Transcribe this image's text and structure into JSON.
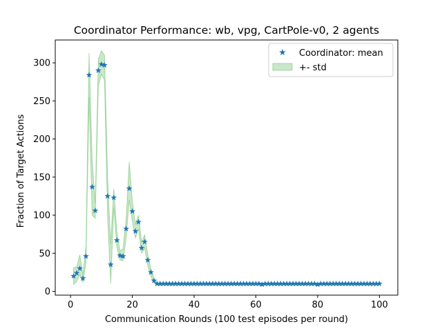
{
  "chart_data": {
    "type": "scatter",
    "title": "Coordinator Performance: wb, vpg, CartPole-v0, 2 agents",
    "xlabel": "Communication Rounds (100 test episodes per round)",
    "ylabel": "Fraction of Target Actions",
    "xlim": [
      -4.95,
      105.95
    ],
    "ylim": [
      -5,
      330
    ],
    "xticks": [
      0,
      20,
      40,
      60,
      80,
      100
    ],
    "yticks": [
      0,
      50,
      100,
      150,
      200,
      250,
      300
    ],
    "grid": false,
    "legend": "top-right",
    "series": [
      {
        "name": "Coordinator: mean",
        "marker": "star",
        "color": "#1f77b4",
        "x": [
          1,
          2,
          3,
          4,
          5,
          6,
          7,
          8,
          9,
          10,
          11,
          12,
          13,
          14,
          15,
          16,
          17,
          18,
          19,
          20,
          21,
          22,
          23,
          24,
          25,
          26,
          27,
          28,
          29,
          30,
          31,
          32,
          33,
          34,
          35,
          36,
          37,
          38,
          39,
          40,
          41,
          42,
          43,
          44,
          45,
          46,
          47,
          48,
          49,
          50,
          51,
          52,
          53,
          54,
          55,
          56,
          57,
          58,
          59,
          60,
          61,
          62,
          63,
          64,
          65,
          66,
          67,
          68,
          69,
          70,
          71,
          72,
          73,
          74,
          75,
          76,
          77,
          78,
          79,
          80,
          81,
          82,
          83,
          84,
          85,
          86,
          87,
          88,
          89,
          90,
          91,
          92,
          93,
          94,
          95,
          96,
          97,
          98,
          99,
          100
        ],
        "y": [
          20,
          24,
          30,
          17,
          46,
          284,
          137,
          106,
          290,
          298,
          297,
          125,
          35,
          123,
          67,
          47,
          46,
          82,
          135,
          105,
          79,
          91,
          57,
          65,
          41,
          25,
          14,
          10,
          10,
          10,
          10,
          10,
          10,
          10,
          10,
          10,
          10,
          10,
          10,
          10,
          10,
          10,
          10,
          10,
          10,
          10,
          10,
          10,
          10,
          10,
          10,
          10,
          10,
          10,
          10,
          10,
          10,
          10,
          10,
          10,
          10,
          9,
          10,
          10,
          10,
          10,
          10,
          10,
          10,
          10,
          10,
          10,
          10,
          10,
          10,
          10,
          10,
          10,
          10,
          9,
          10,
          10,
          10,
          10,
          10,
          10,
          10,
          10,
          10,
          10,
          10,
          10,
          10,
          10,
          10,
          10,
          10,
          10,
          10,
          10
        ]
      },
      {
        "name": "+- std",
        "type": "area",
        "color": "#2ca02c",
        "x": [
          1,
          2,
          3,
          4,
          5,
          6,
          7,
          8,
          9,
          10,
          11,
          12,
          13,
          14,
          15,
          16,
          17,
          18,
          19,
          20,
          21,
          22,
          23,
          24,
          25,
          26,
          27,
          28,
          29,
          30,
          31,
          32,
          33,
          34,
          35,
          36,
          37,
          38,
          39,
          40,
          41,
          42,
          43,
          44,
          45,
          46,
          47,
          48,
          49,
          50,
          51,
          52,
          53,
          54,
          55,
          56,
          57,
          58,
          59,
          60,
          61,
          62,
          63,
          64,
          65,
          66,
          67,
          68,
          69,
          70,
          71,
          72,
          73,
          74,
          75,
          76,
          77,
          78,
          79,
          80,
          81,
          82,
          83,
          84,
          85,
          86,
          87,
          88,
          89,
          90,
          91,
          92,
          93,
          94,
          95,
          96,
          97,
          98,
          99,
          100
        ],
        "lower": [
          9,
          13,
          22,
          12,
          38,
          255,
          100,
          96,
          270,
          285,
          278,
          98,
          10,
          110,
          58,
          41,
          40,
          70,
          120,
          92,
          70,
          82,
          50,
          57,
          34,
          20,
          11,
          9,
          9,
          9,
          9,
          9,
          9,
          9,
          9,
          9,
          9,
          9,
          9,
          9,
          9,
          9,
          9,
          9,
          9,
          9,
          9,
          9,
          9,
          9,
          9,
          9,
          9,
          9,
          9,
          9,
          9,
          9,
          9,
          9,
          9,
          8,
          9,
          9,
          9,
          9,
          9,
          9,
          9,
          9,
          9,
          9,
          9,
          9,
          9,
          9,
          9,
          9,
          9,
          8,
          9,
          9,
          9,
          9,
          9,
          9,
          9,
          9,
          9,
          9,
          9,
          9,
          9,
          9,
          9,
          9,
          9,
          9,
          9,
          9
        ],
        "upper": [
          31,
          32,
          48,
          22,
          60,
          313,
          172,
          116,
          305,
          316,
          310,
          150,
          62,
          135,
          78,
          53,
          56,
          95,
          170,
          118,
          88,
          100,
          65,
          74,
          48,
          30,
          17,
          11,
          11,
          11,
          11,
          11,
          11,
          11,
          11,
          11,
          11,
          11,
          11,
          11,
          11,
          11,
          11,
          11,
          11,
          11,
          11,
          11,
          11,
          11,
          11,
          11,
          11,
          11,
          11,
          11,
          11,
          11,
          11,
          11,
          11,
          10,
          11,
          11,
          11,
          11,
          11,
          11,
          11,
          11,
          11,
          11,
          11,
          11,
          11,
          11,
          11,
          11,
          11,
          10,
          11,
          11,
          11,
          11,
          11,
          11,
          11,
          11,
          11,
          11,
          11,
          11,
          11,
          11,
          11,
          11,
          11,
          11,
          11,
          11
        ]
      }
    ]
  }
}
